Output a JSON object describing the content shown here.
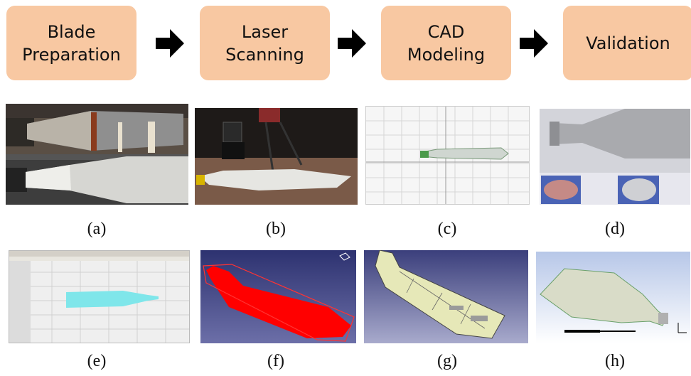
{
  "flow": {
    "steps": [
      {
        "label": "Blade\nPreparation"
      },
      {
        "label": "Laser\nScanning"
      },
      {
        "label": "CAD\nModeling"
      },
      {
        "label": "Validation"
      }
    ],
    "arrow_icon": "right-arrow-icon"
  },
  "panels": {
    "captions": [
      "(a)",
      "(b)",
      "(c)",
      "(d)",
      "(e)",
      "(f)",
      "(g)",
      "(h)"
    ]
  },
  "colors": {
    "step_fill": "#f8c8a2",
    "cad_red": "#ff0000",
    "cad_navy": "#3a3f7a",
    "mesh_cyan": "#7fe6ea",
    "surface_yellow": "#e6e8b8"
  }
}
